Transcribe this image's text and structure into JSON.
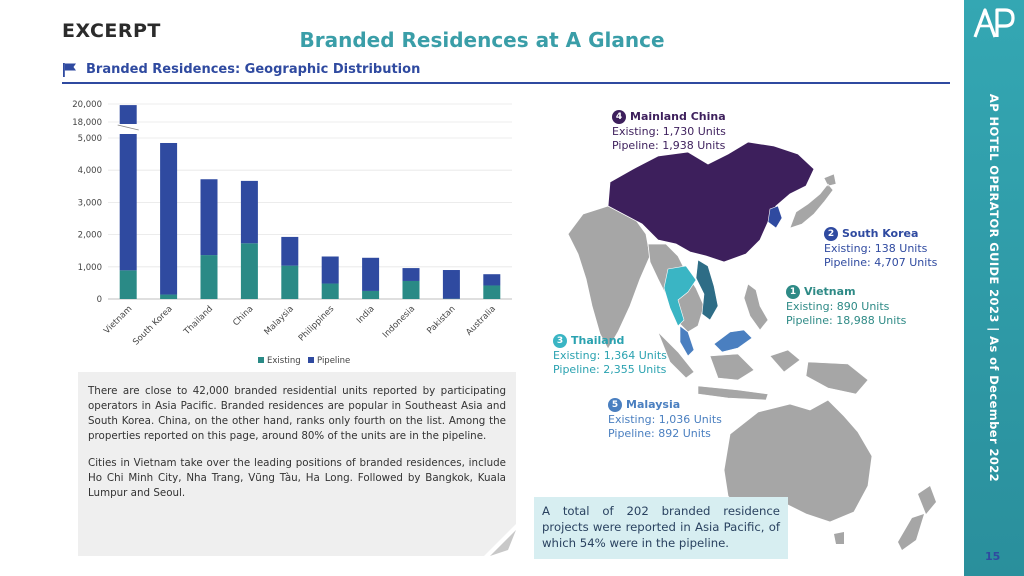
{
  "header": {
    "excerpt": "EXCERPT",
    "title": "Branded Residences at A Glance",
    "section_title": "Branded Residences: Geographic Distribution"
  },
  "sidebar": {
    "logo_text": "AP",
    "vertical_text": "AP HOTEL OPERATOR GUIDE 2023 | As of December 2022",
    "page_number": "15"
  },
  "colors": {
    "existing": "#2a8a86",
    "pipeline": "#2f4aa0",
    "china": "#3d1f5c",
    "vietnam": "#2e6d86",
    "thailand": "#3ab5c4",
    "korea": "#2f4aa0",
    "malaysia": "#4a7fc0",
    "land": "#a6a6a6",
    "accent": "#3a9ea8"
  },
  "chart_data": {
    "type": "bar",
    "stacked": true,
    "categories": [
      "Vietnam",
      "South Korea",
      "Thailand",
      "China",
      "Malaysia",
      "Philippines",
      "India",
      "Indonesia",
      "Pakistan",
      "Australia"
    ],
    "series": [
      {
        "name": "Existing",
        "values": [
          890,
          138,
          1364,
          1730,
          1036,
          480,
          250,
          560,
          10,
          420
        ]
      },
      {
        "name": "Pipeline",
        "values": [
          18988,
          4707,
          2355,
          1938,
          892,
          840,
          1030,
          400,
          890,
          350
        ]
      }
    ],
    "y_ticks": [
      "0",
      "1,000",
      "2,000",
      "3,000",
      "4,000",
      "5,000",
      "18,000",
      "20,000"
    ],
    "axis_break": {
      "from": 5000,
      "to": 18000
    },
    "ylim": [
      0,
      20000
    ],
    "legend_position": "bottom"
  },
  "description": {
    "paragraph1": "There are close to 42,000 branded residential units reported by participating operators in Asia Pacific. Branded residences are popular in Southeast Asia and South Korea. China, on the other hand, ranks only fourth on the list. Among the properties reported on this page, around 80% of the units are in the pipeline.",
    "paragraph2": "Cities in Vietnam take over the leading positions of branded residences, include Ho Chi Minh City, Nha Trang, Vũng Tàu, Ha Long. Followed by Bangkok, Kuala Lumpur and Seoul."
  },
  "callouts": [
    {
      "num": "4",
      "name": "Mainland China",
      "existing": "Existing: 1,730 Units",
      "pipeline": "Pipeline: 1,938 Units",
      "color": "#3d1f5c"
    },
    {
      "num": "2",
      "name": "South Korea",
      "existing": "Existing: 138 Units",
      "pipeline": "Pipeline: 4,707 Units",
      "color": "#2f4aa0"
    },
    {
      "num": "1",
      "name": "Vietnam",
      "existing": "Existing: 890 Units",
      "pipeline": "Pipeline: 18,988 Units",
      "color": "#2e8a86"
    },
    {
      "num": "3",
      "name": "Thailand",
      "existing": "Existing: 1,364 Units",
      "pipeline": "Pipeline: 2,355 Units",
      "color": "#3ab5c4"
    },
    {
      "num": "5",
      "name": "Malaysia",
      "existing": "Existing: 1,036 Units",
      "pipeline": "Pipeline: 892 Units",
      "color": "#4a7fc0"
    }
  ],
  "summary": "A total of 202 branded residence projects were reported in Asia Pacific, of which 54% were in the pipeline."
}
